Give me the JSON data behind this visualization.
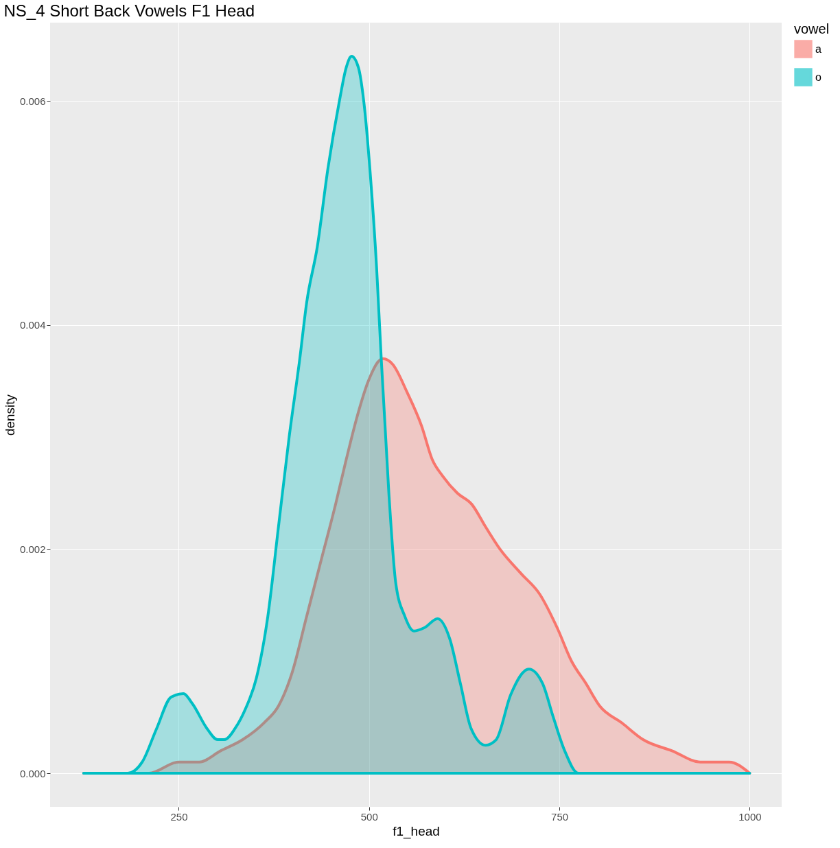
{
  "chart_data": {
    "type": "area",
    "title": "NS_4 Short Back Vowels F1 Head",
    "xlabel": "f1_head",
    "ylabel": "density",
    "legend_title": "vowel",
    "legend": "right",
    "grid": true,
    "xlim": [
      81,
      1042
    ],
    "xticks": [
      250,
      500,
      750,
      1000
    ],
    "ylim": [
      -0.0003,
      0.0067
    ],
    "yticks": [
      {
        "value": 0,
        "label": "0.000"
      },
      {
        "value": 0.002,
        "label": "0.002"
      },
      {
        "value": 0.004,
        "label": "0.004"
      },
      {
        "value": 0.006,
        "label": "0.006"
      }
    ],
    "series": [
      {
        "name": "a",
        "color": "#f8766d",
        "x": [
          125,
          174,
          211,
          250,
          277,
          305,
          334,
          362,
          381,
          399,
          418,
          437,
          456,
          470,
          485,
          499,
          518,
          531,
          550,
          569,
          583,
          597,
          616,
          635,
          653,
          672,
          700,
          724,
          747,
          766,
          785,
          803,
          832,
          860,
          898,
          935,
          973,
          1000
        ],
        "values": [
          0,
          0,
          0,
          0.0001,
          0.0001,
          0.0002,
          0.0003,
          0.00045,
          0.0006,
          0.0009,
          0.0014,
          0.0019,
          0.0024,
          0.0028,
          0.0032,
          0.0035,
          0.0037,
          0.00365,
          0.0034,
          0.0031,
          0.0028,
          0.00265,
          0.0025,
          0.0024,
          0.0022,
          0.002,
          0.00178,
          0.0016,
          0.0013,
          0.001,
          0.0008,
          0.0006,
          0.00045,
          0.0003,
          0.0002,
          0.0001,
          0.0001,
          0
        ]
      },
      {
        "name": "o",
        "color": "#00bfc4",
        "x": [
          125,
          183,
          202,
          221,
          240,
          256,
          268,
          287,
          301,
          310,
          324,
          338,
          352,
          367,
          381,
          395,
          409,
          418,
          432,
          446,
          461,
          470,
          477,
          486,
          493,
          501,
          510,
          516,
          526,
          535,
          547,
          559,
          573,
          590,
          606,
          620,
          634,
          653,
          667,
          686,
          710,
          728,
          742,
          757,
          775,
          794,
          1000
        ],
        "values": [
          0,
          0,
          0.0001,
          0.0004,
          0.00068,
          0.00071,
          0.00062,
          0.0004,
          0.0003,
          0.0003,
          0.0004,
          0.00058,
          0.00085,
          0.0014,
          0.0022,
          0.003,
          0.0037,
          0.0042,
          0.0047,
          0.0054,
          0.006,
          0.0063,
          0.0064,
          0.0063,
          0.006,
          0.0054,
          0.0045,
          0.0037,
          0.0025,
          0.0017,
          0.0014,
          0.00127,
          0.0013,
          0.00138,
          0.0012,
          0.0008,
          0.0004,
          0.00025,
          0.0003,
          0.0007,
          0.00093,
          0.0008,
          0.0005,
          0.0002,
          0,
          0,
          0
        ]
      }
    ]
  }
}
